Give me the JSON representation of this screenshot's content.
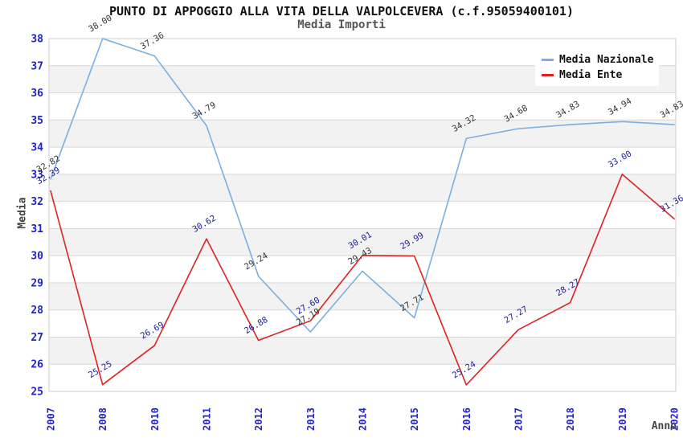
{
  "title": "PUNTO DI APPOGGIO ALLA VITA DELLA VALPOLCEVERA (c.f.95059400101)",
  "subtitle": "Media Importi",
  "axes": {
    "y_label": "Media",
    "x_label": "Anno",
    "y_ticks": [
      25,
      26,
      27,
      28,
      29,
      30,
      31,
      32,
      33,
      34,
      35,
      36,
      37,
      38
    ]
  },
  "legend": {
    "position": "top-right",
    "items": [
      {
        "label": "Media Nazionale",
        "color": "#7aafe0"
      },
      {
        "label": "Media Ente",
        "color": "#dd2222"
      }
    ]
  },
  "colors": {
    "tick_label": "#2222cc",
    "band_gray": "#f2f2f2",
    "gridline": "#d8d8d8",
    "plot_border": "#cccccc",
    "nazionale_line": "#7aafe0",
    "ente_line": "#dd2222",
    "nazionale_point_label": "#333333",
    "ente_point_label": "#20209a"
  },
  "chart_data": {
    "type": "line",
    "title": "PUNTO DI APPOGGIO ALLA VITA DELLA VALPOLCEVERA (c.f.95059400101)",
    "subtitle": "Media Importi",
    "xlabel": "Anno",
    "ylabel": "Media",
    "ylim": [
      25,
      38
    ],
    "grid": "horizontal-bands-alternating",
    "legend_position": "top-right",
    "x": [
      "2007",
      "2008",
      "2010",
      "2011",
      "2012",
      "2013",
      "2014",
      "2015",
      "2016",
      "2017",
      "2018",
      "2019",
      "2020"
    ],
    "series": [
      {
        "name": "Media Nazionale",
        "color": "#7aafe0",
        "label_color": "#333333",
        "values": [
          32.82,
          38.0,
          37.36,
          34.79,
          29.24,
          27.19,
          29.43,
          27.71,
          34.32,
          34.68,
          34.83,
          34.94,
          34.83
        ]
      },
      {
        "name": "Media Ente",
        "color": "#dd2222",
        "label_color": "#20209a",
        "values": [
          32.39,
          25.25,
          26.69,
          30.62,
          26.88,
          27.6,
          30.01,
          29.99,
          25.24,
          27.27,
          28.27,
          33.0,
          31.36
        ]
      }
    ]
  }
}
